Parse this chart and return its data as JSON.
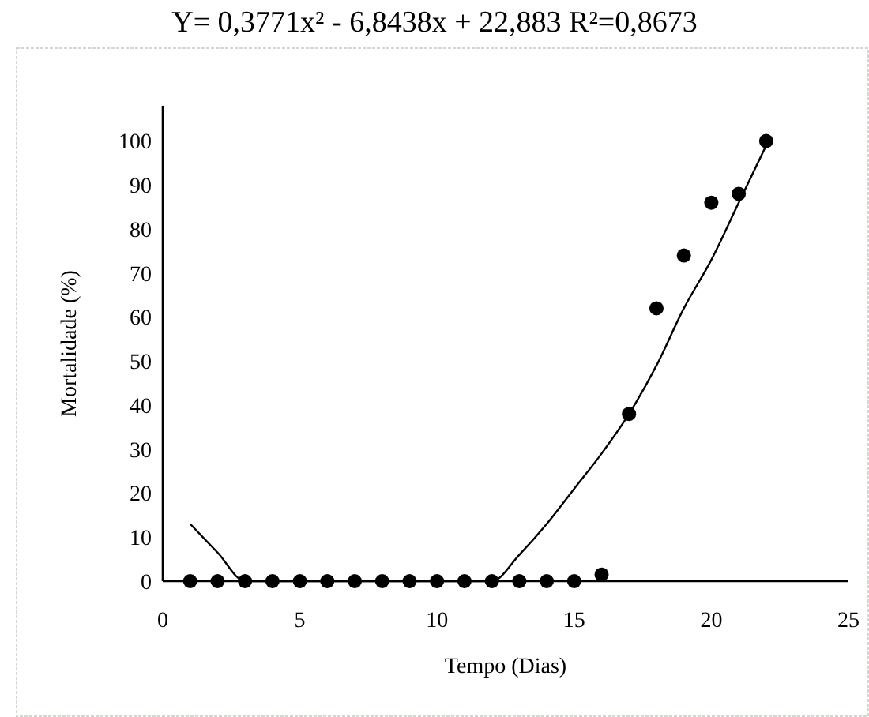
{
  "chart_data": {
    "type": "scatter",
    "title": "Y= 0,3771x² - 6,8438x + 22,883   R²=0,8673",
    "xlabel": "Tempo (Dias)",
    "ylabel": "Mortalidade (%)",
    "xlim": [
      0,
      25
    ],
    "xticks": [
      0,
      5,
      10,
      15,
      20,
      25
    ],
    "ylim": [
      0,
      108
    ],
    "yticks": [
      0,
      10,
      20,
      30,
      40,
      50,
      60,
      70,
      80,
      90,
      100
    ],
    "grid": false,
    "series": [
      {
        "color": "#000000",
        "marker": "circle",
        "x": [
          1,
          2,
          3,
          4,
          5,
          6,
          7,
          8,
          9,
          10,
          11,
          12,
          13,
          14,
          15,
          16,
          17,
          18,
          19,
          20,
          21,
          22
        ],
        "values": [
          0,
          0,
          0,
          0,
          0,
          0,
          0,
          0,
          0,
          0,
          0,
          0,
          0,
          0,
          0,
          1.5,
          38,
          62,
          74,
          86,
          88,
          100
        ]
      },
      {
        "type": "line",
        "color": "#000000",
        "marker": "none",
        "line_style": "solid",
        "x": [
          1,
          2,
          3,
          4,
          5,
          6,
          7,
          8,
          9,
          10,
          11,
          12,
          13,
          14,
          15,
          16,
          17,
          18,
          19,
          20,
          21,
          22
        ],
        "values": [
          13,
          6.5,
          0,
          0,
          0,
          0,
          0,
          0,
          0,
          0,
          0,
          0,
          6,
          13,
          21,
          29,
          38,
          49,
          62,
          73,
          86,
          99
        ]
      }
    ]
  }
}
